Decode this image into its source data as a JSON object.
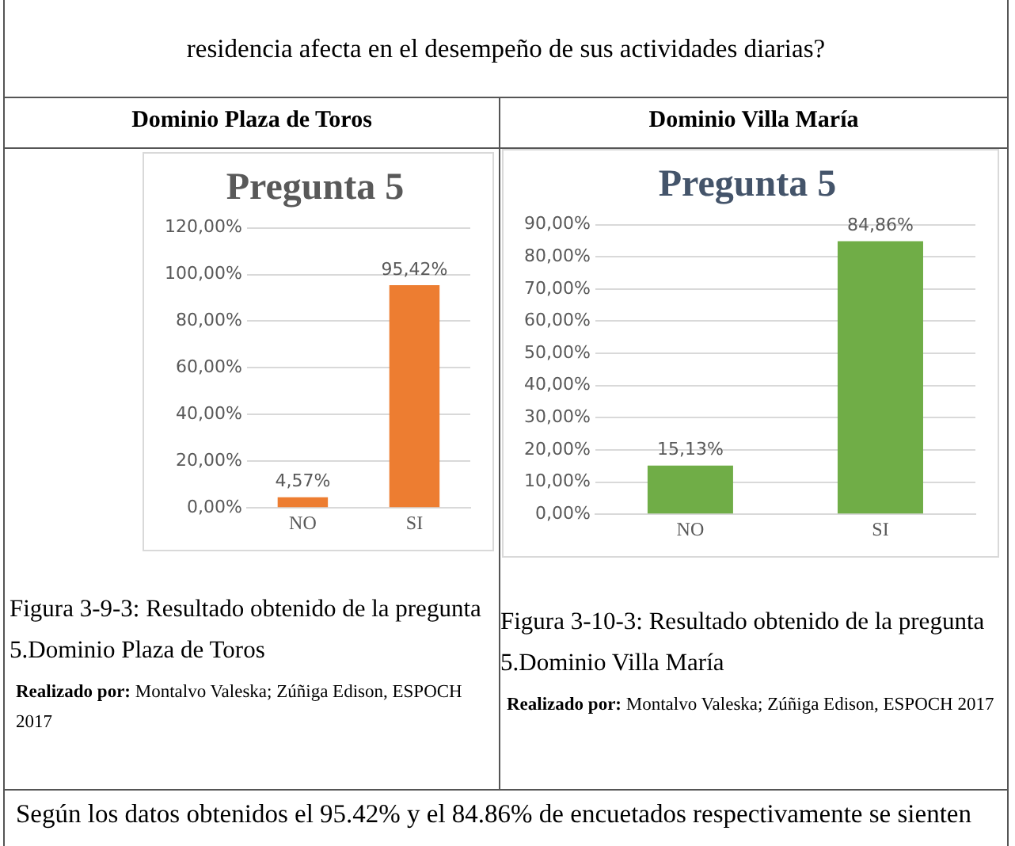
{
  "chart_data": [
    {
      "type": "bar",
      "title": "Pregunta 5",
      "categories": [
        "NO",
        "SI"
      ],
      "values": [
        4.57,
        95.42
      ],
      "color": "#ed7d31",
      "value_labels": [
        "4,57%",
        "95,42%"
      ],
      "ylim": [
        0,
        120
      ],
      "yticks": [
        {
          "value": 0,
          "label": "0,00%"
        },
        {
          "value": 20,
          "label": "20,00%"
        },
        {
          "value": 40,
          "label": "40,00%"
        },
        {
          "value": 60,
          "label": "60,00%"
        },
        {
          "value": 80,
          "label": "80,00%"
        },
        {
          "value": 100,
          "label": "100,00%"
        },
        {
          "value": 120,
          "label": "120,00%"
        }
      ],
      "grid": "y",
      "legend": false,
      "annotations": [
        "Dominio Plaza de Toros",
        "Figura 3-9-3: Resultado obtenido de la pregunta 5.Dominio Plaza de Toros",
        "Realizado por: Montalvo Valeska; Zúñiga Edison, ESPOCH 2017",
        "residencia afecta en el desempeño de sus actividades diarias?",
        "Según los datos obtenidos el 95.42% y el 84.86% de encuetados respectivamente  se sienten"
      ]
    },
    {
      "type": "bar",
      "title": "Pregunta 5",
      "categories": [
        "NO",
        "SI"
      ],
      "values": [
        15.13,
        84.86
      ],
      "color": "#70ad47",
      "value_labels": [
        "15,13%",
        "84,86%"
      ],
      "ylim": [
        0,
        90
      ],
      "yticks": [
        {
          "value": 0,
          "label": "0,00%"
        },
        {
          "value": 10,
          "label": "10,00%"
        },
        {
          "value": 20,
          "label": "20,00%"
        },
        {
          "value": 30,
          "label": "30,00%"
        },
        {
          "value": 40,
          "label": "40,00%"
        },
        {
          "value": 50,
          "label": "50,00%"
        },
        {
          "value": 60,
          "label": "60,00%"
        },
        {
          "value": 70,
          "label": "70,00%"
        },
        {
          "value": 80,
          "label": "80,00%"
        },
        {
          "value": 90,
          "label": "90,00%"
        }
      ],
      "grid": "y",
      "legend": false,
      "annotations": [
        "Dominio Villa María",
        "Figura 3-10-3: Resultado obtenido de la pregunta 5.Dominio Villa María",
        "Realizado por: Montalvo Valeska; Zúñiga Edison, ESPOCH 2017"
      ]
    }
  ]
}
